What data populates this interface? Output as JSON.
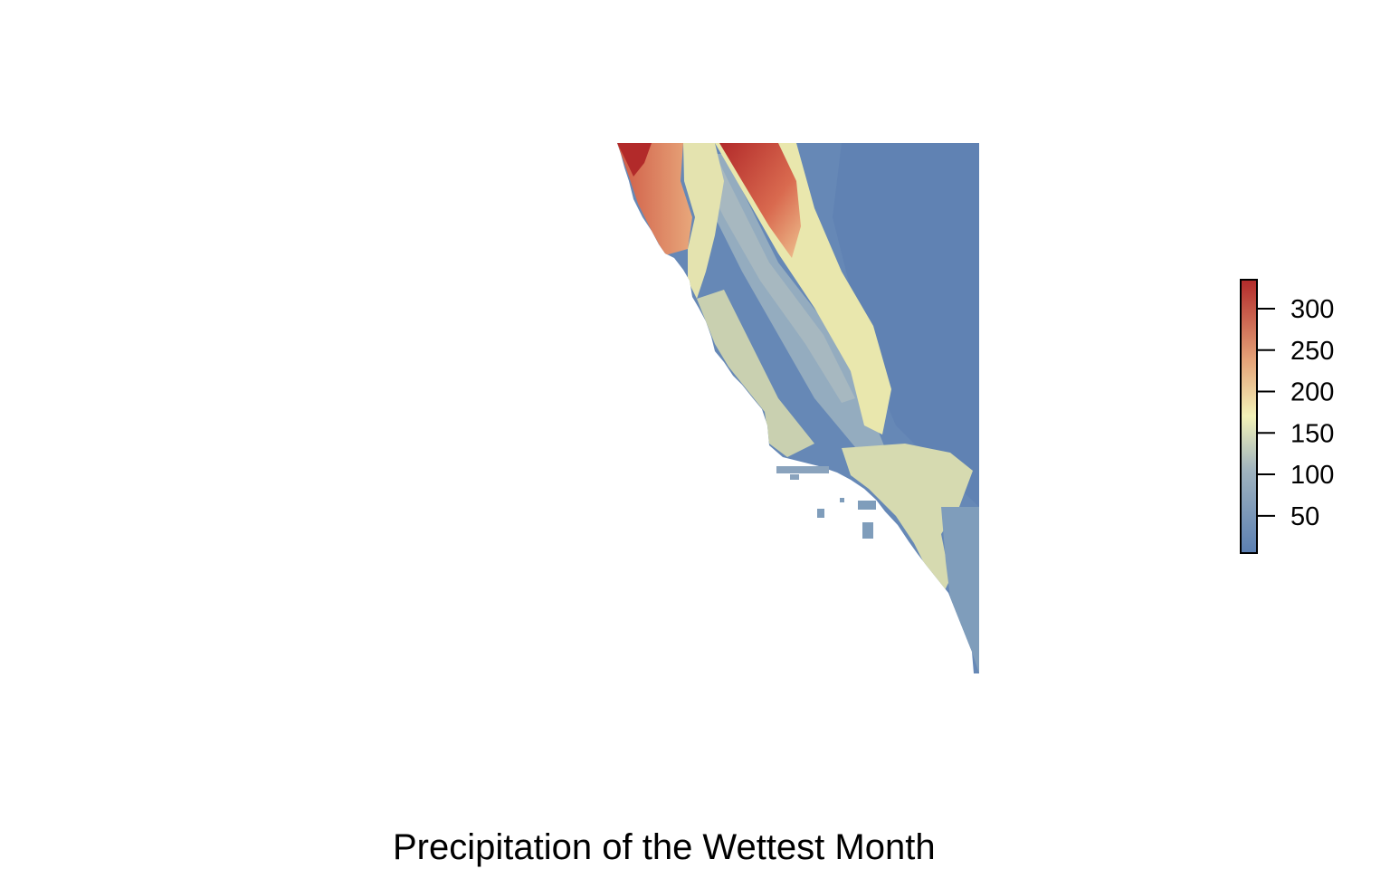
{
  "title": "Precipitation of the Wettest Month",
  "colors": {
    "low": "#5b7fb2",
    "mid": "#f2f2b8",
    "high": "#b22a2a",
    "background": "#ffffff"
  },
  "legend": {
    "placement": "right",
    "min": 5,
    "max": 335,
    "ticks": [
      {
        "value": 300,
        "label": "300"
      },
      {
        "value": 250,
        "label": "250"
      },
      {
        "value": 200,
        "label": "200"
      },
      {
        "value": 150,
        "label": "150"
      },
      {
        "value": 100,
        "label": "100"
      },
      {
        "value": 50,
        "label": "50"
      }
    ]
  }
}
